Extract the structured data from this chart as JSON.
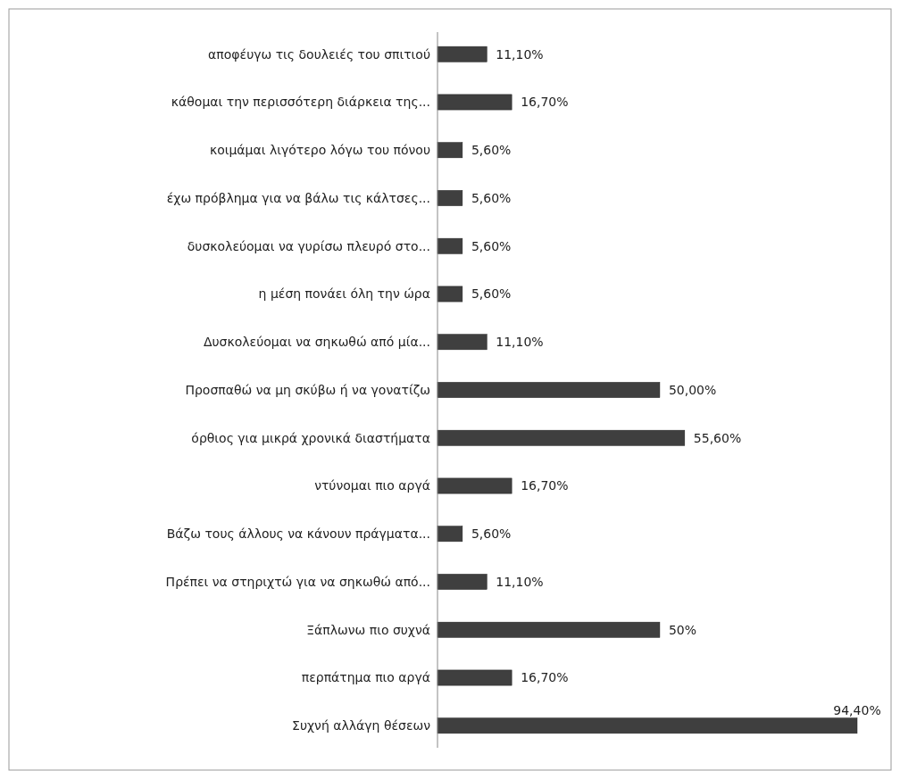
{
  "chart_data": {
    "type": "bar",
    "orientation": "horizontal",
    "color": "#3f3f3f",
    "categories": [
      "αποφέυγω τις δουλειές του σπιτιού",
      "κάθομαι την περισσότερη διάρκεια της...",
      "κοιμάμαι λιγότερο λόγω του πόνου",
      "έχω πρόβλημα για να βάλω τις κάλτσες...",
      "δυσκολεύομαι να γυρίσω πλευρό στο...",
      "η μέση πονάει όλη την ώρα",
      "Δυσκολεύομαι να σηκωθώ από μία...",
      "Προσπαθώ να μη σκύβω ή να γονατίζω",
      "όρθιος για μικρά χρονικά διαστήματα",
      "ντύνομαι πιο αργά",
      "Βάζω τους άλλους να κάνουν πράγματα...",
      "Πρέπει να στηριχτώ για να σηκωθώ από...",
      "Ξάπλωνω πιο συχνά",
      "περπάτημα πιο αργά",
      "Συχνή αλλάγη θέσεων"
    ],
    "values": [
      11.1,
      16.7,
      5.6,
      5.6,
      5.6,
      5.6,
      11.1,
      50,
      55.6,
      16.7,
      5.6,
      11.1,
      50,
      16.7,
      94.4
    ],
    "value_labels": [
      "11,10%",
      "16,70%",
      "5,60%",
      "5,60%",
      "5,60%",
      "5,60%",
      "11,10%",
      "50,00%",
      "55,60%",
      "16,70%",
      "5,60%",
      "11,10%",
      "50%",
      "16,70%",
      "94,40%"
    ]
  }
}
